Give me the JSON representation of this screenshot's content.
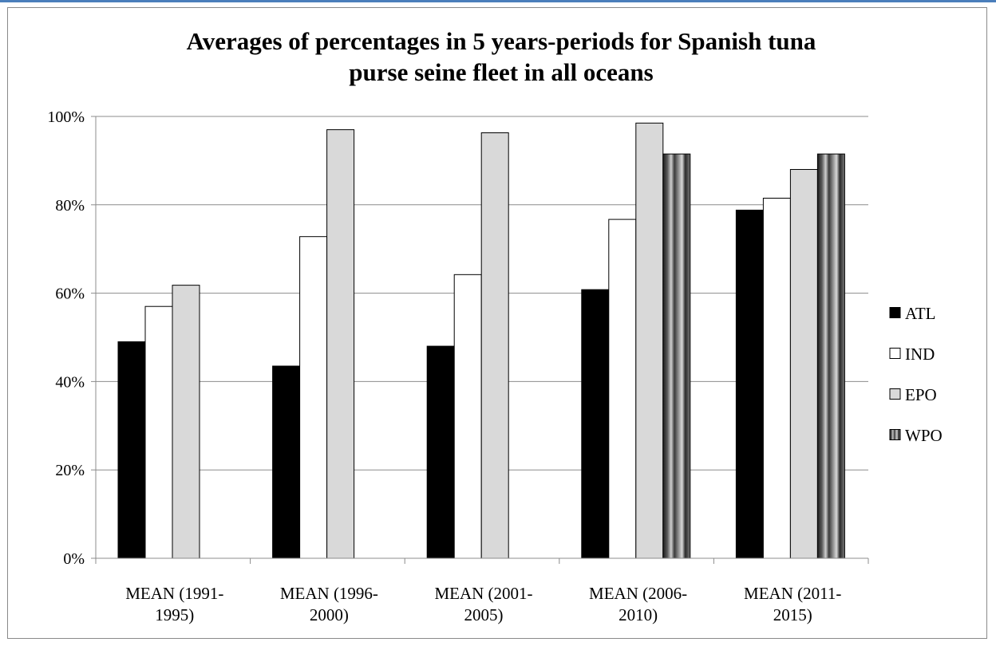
{
  "chart_data": {
    "type": "bar",
    "title": [
      "Averages of percentages in 5 years-periods for Spanish tuna",
      "purse seine fleet in all oceans"
    ],
    "categories": [
      [
        "MEAN (1991-",
        "1995)"
      ],
      [
        "MEAN (1996-",
        "2000)"
      ],
      [
        "MEAN (2001-",
        "2005)"
      ],
      [
        "MEAN (2006-",
        "2010)"
      ],
      [
        "MEAN (2011-",
        "2015)"
      ]
    ],
    "series": [
      {
        "name": "ATL",
        "values": [
          49,
          43.5,
          48,
          60.8,
          78.8
        ]
      },
      {
        "name": "IND",
        "values": [
          57,
          72.8,
          64.2,
          76.7,
          81.5
        ]
      },
      {
        "name": "EPO",
        "values": [
          61.8,
          97,
          96.3,
          98.5,
          88
        ]
      },
      {
        "name": "WPO",
        "values": [
          null,
          null,
          null,
          91.5,
          91.5
        ]
      }
    ],
    "ylim": [
      0,
      100
    ],
    "yticks": [
      "0%",
      "20%",
      "40%",
      "60%",
      "80%",
      "100%"
    ],
    "ytick_values": [
      0,
      20,
      40,
      60,
      80,
      100
    ],
    "grid": true,
    "legend_position": "right",
    "colors": {
      "ATL": "#000000",
      "IND": "#ffffff",
      "EPO": "#d9d9d9",
      "WPO": "gradient-dark-gray",
      "gridline": "#8c8c8c",
      "border": "#000000",
      "frame_accent": "#4a7ebb"
    }
  }
}
